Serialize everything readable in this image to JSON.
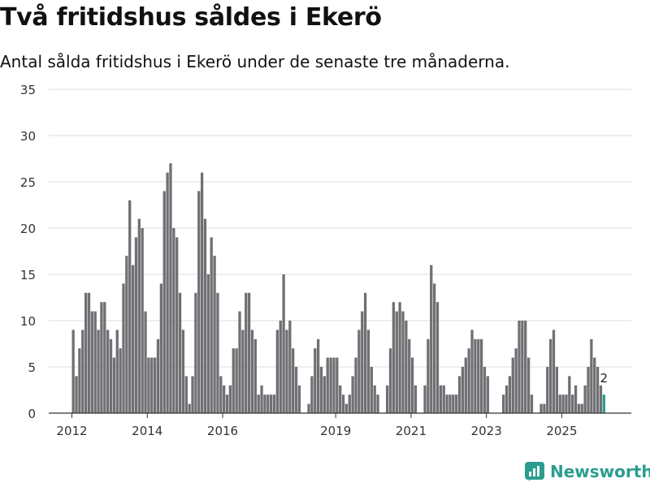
{
  "header": {
    "title": "Två fritidshus såldes i Ekerö",
    "subtitle": "Antal sålda fritidshus i Ekerö under de senaste tre månaderna."
  },
  "brand": {
    "name": "Newsworthy"
  },
  "colors": {
    "bar": "#707074",
    "highlight": "#2a9d8f",
    "grid": "#dddddd",
    "axis": "#333333"
  },
  "chart_data": {
    "type": "bar",
    "title": "Två fritidshus såldes i Ekerö",
    "subtitle": "Antal sålda fritidshus i Ekerö under de senaste tre månaderna.",
    "ylim": [
      0,
      35
    ],
    "yticks": [
      0,
      5,
      10,
      15,
      20,
      25,
      30,
      35
    ],
    "xticks": [
      "2012",
      "2014",
      "2016",
      "2019",
      "2021",
      "2023",
      "2025"
    ],
    "grid": "horizontal",
    "start_month": "2012-01",
    "values": [
      9,
      4,
      7,
      9,
      13,
      13,
      11,
      11,
      9,
      12,
      12,
      9,
      8,
      6,
      9,
      7,
      14,
      17,
      23,
      16,
      19,
      21,
      20,
      11,
      6,
      6,
      6,
      8,
      14,
      24,
      26,
      27,
      20,
      19,
      13,
      9,
      4,
      1,
      4,
      13,
      24,
      26,
      21,
      15,
      19,
      17,
      13,
      4,
      3,
      2,
      3,
      7,
      7,
      11,
      9,
      13,
      13,
      9,
      8,
      2,
      3,
      2,
      2,
      2,
      2,
      9,
      10,
      15,
      9,
      10,
      7,
      5,
      3,
      0,
      0,
      1,
      4,
      7,
      8,
      5,
      4,
      6,
      6,
      6,
      6,
      3,
      2,
      1,
      2,
      4,
      6,
      9,
      11,
      13,
      9,
      5,
      3,
      2,
      0,
      0,
      3,
      7,
      12,
      11,
      12,
      11,
      10,
      8,
      6,
      3,
      0,
      0,
      3,
      8,
      16,
      14,
      12,
      3,
      3,
      2,
      2,
      2,
      2,
      4,
      5,
      6,
      7,
      9,
      8,
      8,
      8,
      5,
      4,
      0,
      0,
      0,
      0,
      2,
      3,
      4,
      6,
      7,
      10,
      10,
      10,
      6,
      2,
      0,
      0,
      1,
      1,
      5,
      8,
      9,
      5,
      2,
      2,
      2,
      4,
      2,
      3,
      1,
      1,
      3,
      5,
      8,
      6,
      5,
      3,
      2
    ],
    "highlight_label": "2"
  }
}
